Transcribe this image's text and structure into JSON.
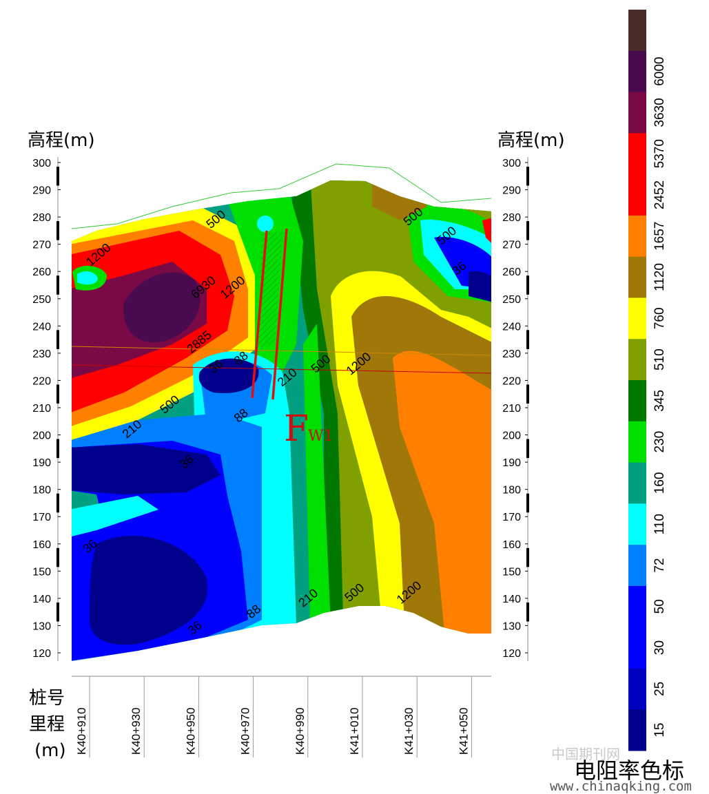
{
  "chart_data": {
    "type": "heatmap",
    "title": "",
    "y_axis_left_title": "高程(m)",
    "y_axis_right_title": "高程(m)",
    "y_ticks": [
      300,
      290,
      280,
      270,
      260,
      250,
      240,
      230,
      220,
      210,
      200,
      190,
      180,
      170,
      160,
      150,
      140,
      130,
      120
    ],
    "ylim": [
      118,
      302
    ],
    "x_title_lines": [
      "桩号",
      "里程",
      "(m)"
    ],
    "x_ticks": [
      "K40+910",
      "K40+930",
      "K40+950",
      "K40+970",
      "K40+990",
      "K41+010",
      "K41+030",
      "K41+050"
    ],
    "colorbar": {
      "title": "电阻率色标",
      "levels": [
        {
          "label": "",
          "color": "#4a2d2a"
        },
        {
          "label": "6000",
          "color": "#4a0a4f"
        },
        {
          "label": "3630",
          "color": "#7a0a45"
        },
        {
          "label": "5370",
          "color": "#ff0000"
        },
        {
          "label": "2452",
          "color": "#ff0000"
        },
        {
          "label": "1657",
          "color": "#ff8000"
        },
        {
          "label": "1120",
          "color": "#a0780a"
        },
        {
          "label": "760",
          "color": "#ffff00"
        },
        {
          "label": "510",
          "color": "#80a000"
        },
        {
          "label": "345",
          "color": "#007800"
        },
        {
          "label": "230",
          "color": "#00e000"
        },
        {
          "label": "160",
          "color": "#00a080"
        },
        {
          "label": "110",
          "color": "#00ffff"
        },
        {
          "label": "72",
          "color": "#0080ff"
        },
        {
          "label": "50",
          "color": "#0000ff"
        },
        {
          "label": "30",
          "color": "#0000ff"
        },
        {
          "label": "25",
          "color": "#0000c0"
        },
        {
          "label": "15",
          "color": "#00008c"
        }
      ]
    },
    "contour_labels": [
      {
        "text": "1200",
        "x": 0.07,
        "y": 265
      },
      {
        "text": "500",
        "x": 0.35,
        "y": 278
      },
      {
        "text": "6930",
        "x": 0.32,
        "y": 253
      },
      {
        "text": "1200",
        "x": 0.39,
        "y": 253
      },
      {
        "text": "2885",
        "x": 0.31,
        "y": 233
      },
      {
        "text": "36",
        "x": 0.35,
        "y": 224
      },
      {
        "text": "88",
        "x": 0.41,
        "y": 227
      },
      {
        "text": "210",
        "x": 0.52,
        "y": 220
      },
      {
        "text": "500",
        "x": 0.6,
        "y": 225
      },
      {
        "text": "1200",
        "x": 0.69,
        "y": 225
      },
      {
        "text": "500",
        "x": 0.24,
        "y": 210
      },
      {
        "text": "210",
        "x": 0.15,
        "y": 201
      },
      {
        "text": "88",
        "x": 0.41,
        "y": 206
      },
      {
        "text": "36",
        "x": 0.28,
        "y": 189
      },
      {
        "text": "36",
        "x": 0.05,
        "y": 158
      },
      {
        "text": "210",
        "x": 0.57,
        "y": 139
      },
      {
        "text": "500",
        "x": 0.68,
        "y": 141
      },
      {
        "text": "1200",
        "x": 0.81,
        "y": 141
      },
      {
        "text": "88",
        "x": 0.44,
        "y": 134
      },
      {
        "text": "36",
        "x": 0.3,
        "y": 128
      },
      {
        "text": "500",
        "x": 0.82,
        "y": 279
      },
      {
        "text": "500",
        "x": 0.9,
        "y": 272
      },
      {
        "text": "36",
        "x": 0.93,
        "y": 260
      }
    ],
    "annotations": [
      {
        "text": "F",
        "sub": "W1"
      }
    ],
    "fault_lines_present": true,
    "grid": false
  },
  "watermark": {
    "cn": "中国期刊网",
    "url": "www.chinaqking.com"
  }
}
